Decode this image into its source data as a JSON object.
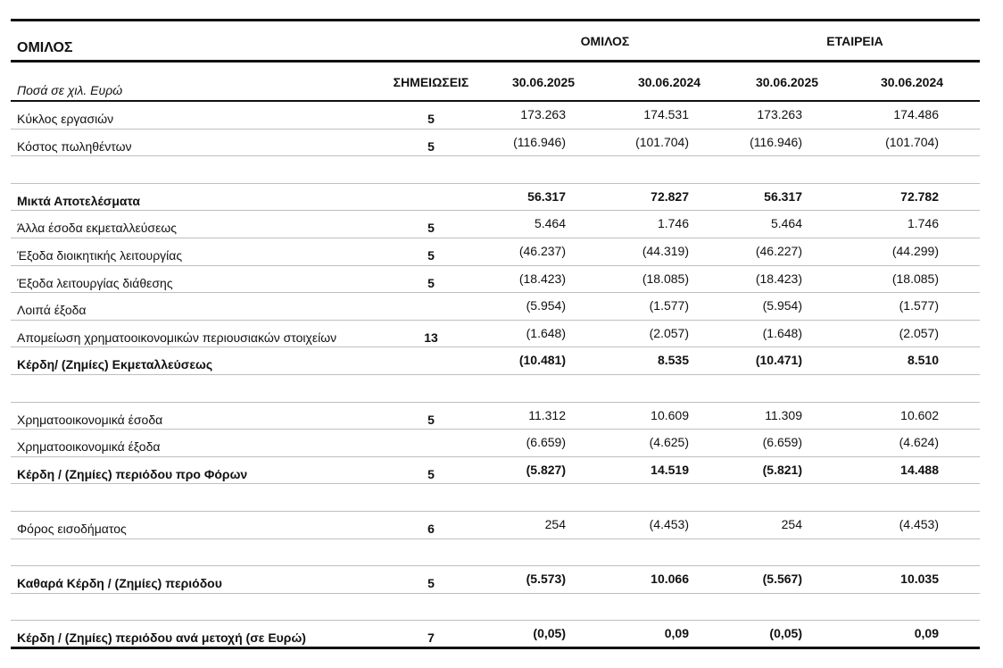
{
  "header": {
    "title": "ΟΜΙΛΟΣ",
    "groups": [
      "ΟΜΙΛΟΣ",
      "ΕΤΑΙΡΕΙΑ"
    ],
    "unit_label": "Ποσά σε χιλ. Ευρώ",
    "notes_header": "ΣΗΜΕΙΩΣΕΙΣ",
    "dates": [
      "30.06.2025",
      "30.06.2024",
      "30.06.2025",
      "30.06.2024"
    ]
  },
  "table": {
    "rows": [
      {
        "label": "Κύκλος εργασιών",
        "note": "5",
        "values": [
          "173.263",
          "174.531",
          "173.263",
          "174.486"
        ],
        "bold": false
      },
      {
        "label": "Κόστος πωληθέντων",
        "note": "5",
        "values": [
          "(116.946)",
          "(101.704)",
          "(116.946)",
          "(101.704)"
        ],
        "bold": false
      },
      null,
      {
        "label": "Μικτά Αποτελέσματα",
        "note": null,
        "values": [
          "56.317",
          "72.827",
          "56.317",
          "72.782"
        ],
        "bold": true
      },
      {
        "label": "Άλλα έσοδα εκμεταλλεύσεως",
        "note": "5",
        "values": [
          "5.464",
          "1.746",
          "5.464",
          "1.746"
        ],
        "bold": false
      },
      {
        "label": "Έξοδα διοικητικής λειτουργίας",
        "note": "5",
        "values": [
          "(46.237)",
          "(44.319)",
          "(46.227)",
          "(44.299)"
        ],
        "bold": false
      },
      {
        "label": "Έξοδα  λειτουργίας διάθεσης",
        "note": "5",
        "values": [
          "(18.423)",
          "(18.085)",
          "(18.423)",
          "(18.085)"
        ],
        "bold": false
      },
      {
        "label": "Λοιπά  έξοδα",
        "note": null,
        "values": [
          "(5.954)",
          "(1.577)",
          "(5.954)",
          "(1.577)"
        ],
        "bold": false
      },
      {
        "label": "Απομείωση χρηματοοικονομικών περιουσιακών στοιχείων",
        "note": "13",
        "values": [
          "(1.648)",
          "(2.057)",
          "(1.648)",
          "(2.057)"
        ],
        "bold": false
      },
      {
        "label": "Κέρδη/ (Ζημίες) Εκμεταλλεύσεως",
        "note": null,
        "values": [
          "(10.481)",
          "8.535",
          "(10.471)",
          "8.510"
        ],
        "bold": true
      },
      null,
      {
        "label": "Χρηματοοικονομικά έσοδα",
        "note": "5",
        "values": [
          "11.312",
          "10.609",
          "11.309",
          "10.602"
        ],
        "bold": false
      },
      {
        "label": "Χρηματοοικονομικά έξοδα",
        "note": null,
        "values": [
          "(6.659)",
          "(4.625)",
          "(6.659)",
          "(4.624)"
        ],
        "bold": false
      },
      {
        "label": "Κέρδη / (Ζημίες) περιόδου προ Φόρων",
        "note": "5",
        "values": [
          "(5.827)",
          "14.519",
          "(5.821)",
          "14.488"
        ],
        "bold": true
      },
      null,
      {
        "label": "Φόρος εισοδήματος",
        "note": "6",
        "values": [
          "254",
          "(4.453)",
          "254",
          "(4.453)"
        ],
        "bold": false
      },
      null,
      {
        "label": "Καθαρά Κέρδη / (Ζημίες) περιόδου",
        "note": "5",
        "values": [
          "(5.573)",
          "10.066",
          "(5.567)",
          "10.035"
        ],
        "bold": true
      },
      null,
      {
        "label": "Κέρδη / (Ζημίες) περιόδου ανά μετοχή (σε Ευρώ)",
        "note": "7",
        "values": [
          "(0,05)",
          "0,09",
          "(0,05)",
          "0,09"
        ],
        "bold": true
      }
    ]
  }
}
